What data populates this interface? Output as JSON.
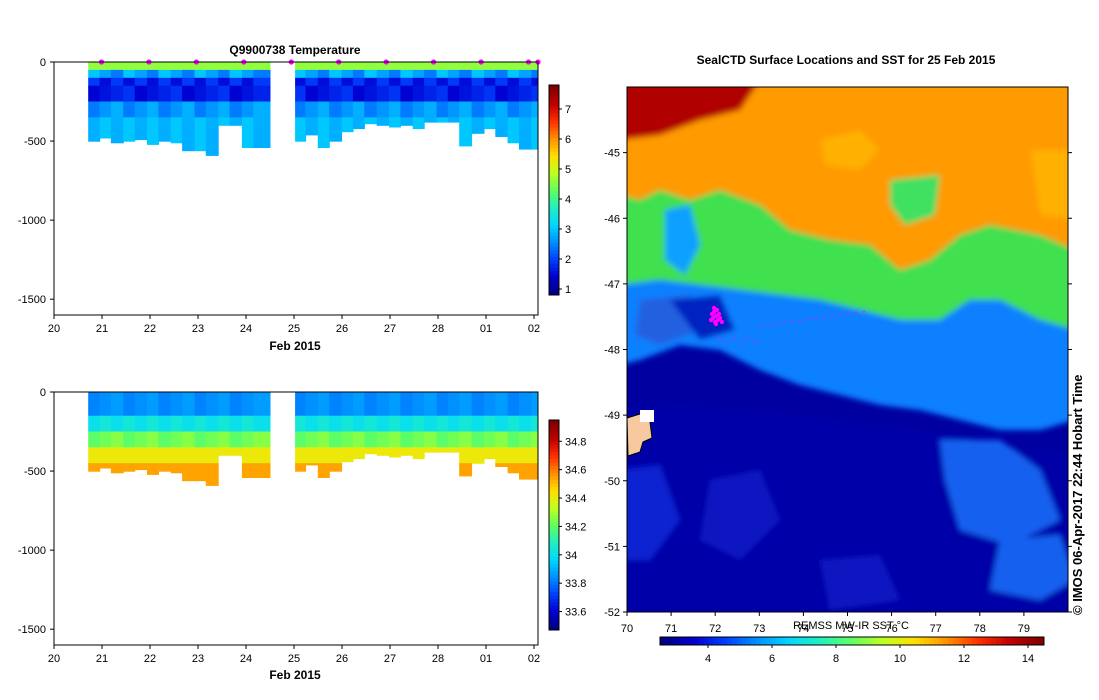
{
  "chart_data": [
    {
      "type": "heatmap",
      "title": "Q9900738  Temperature",
      "xlabel": "Feb 2015",
      "x_ticks": [
        "20",
        "21",
        "22",
        "23",
        "24",
        "25",
        "26",
        "27",
        "28",
        "01",
        "02"
      ],
      "y_ticks": [
        "0",
        "-500",
        "-1000",
        "-1500"
      ],
      "ylim": [
        -1600,
        0
      ],
      "x_days": [
        20,
        30.2
      ],
      "colorbar": {
        "ticks": [
          "1",
          "2",
          "3",
          "4",
          "5",
          "6",
          "7"
        ],
        "range": [
          0.8,
          7.8
        ]
      },
      "profiles": {
        "start_days": [
          20.72,
          20.96,
          21.2,
          21.46,
          21.7,
          21.96,
          22.2,
          22.46,
          22.7,
          22.96,
          23.2,
          23.46,
          23.7,
          23.96,
          24.2,
          25.08,
          25.3,
          25.56,
          25.8,
          26.06,
          26.3,
          26.54,
          26.8,
          27.06,
          27.3,
          27.56,
          27.8,
          28.06,
          28.3,
          28.54,
          28.8,
          29.06,
          29.3,
          29.56,
          29.8,
          30.06
        ],
        "end_day": 30.2,
        "max_depths": [
          500,
          480,
          510,
          500,
          490,
          520,
          500,
          510,
          560,
          560,
          590,
          400,
          400,
          540,
          540,
          500,
          460,
          540,
          500,
          440,
          420,
          390,
          400,
          410,
          400,
          420,
          380,
          380,
          380,
          530,
          450,
          420,
          470,
          510,
          550,
          550
        ],
        "depth_levels": [
          0,
          50,
          100,
          150,
          200,
          250,
          300,
          350,
          400,
          450,
          500,
          550,
          600
        ],
        "values_note": "temperature (°C) per 50 m depth bin"
      }
    },
    {
      "type": "heatmap",
      "title": "",
      "xlabel": "Feb 2015",
      "x_ticks": [
        "20",
        "21",
        "22",
        "23",
        "24",
        "25",
        "26",
        "27",
        "28",
        "01",
        "02"
      ],
      "y_ticks": [
        "0",
        "-500",
        "-1000",
        "-1500"
      ],
      "ylim": [
        -1600,
        0
      ],
      "colorbar": {
        "ticks": [
          "33.6",
          "33.8",
          "34",
          "34.2",
          "34.4",
          "34.6",
          "34.8"
        ],
        "range": [
          33.47,
          34.95
        ]
      }
    },
    {
      "type": "heatmap",
      "title": "SealCTD Surface Locations and SST for 25 Feb 2015",
      "x_ticks": [
        "70",
        "71",
        "72",
        "73",
        "74",
        "75",
        "76",
        "77",
        "78",
        "79"
      ],
      "y_ticks": [
        "-45",
        "-46",
        "-47",
        "-48",
        "-49",
        "-50",
        "-51",
        "-52"
      ],
      "xlim": [
        70,
        80
      ],
      "ylim": [
        -52,
        -44
      ],
      "colorbar": {
        "label": "REMSS MW-IR SST °C",
        "ticks": [
          "4",
          "6",
          "8",
          "10",
          "12",
          "14"
        ],
        "range": [
          2.5,
          14.5
        ]
      },
      "side_label": "© IMOS 06-Apr-2017 22:44 Hobart Time"
    }
  ],
  "colors": {
    "jet": [
      "#000080",
      "#0000d0",
      "#0040ff",
      "#0090ff",
      "#00d8ff",
      "#20f0c0",
      "#60ff60",
      "#c0ff20",
      "#ffe000",
      "#ff9000",
      "#ff3000",
      "#c00000",
      "#800000"
    ],
    "marker": "#ff00ff",
    "land": "#f6c9a0"
  }
}
